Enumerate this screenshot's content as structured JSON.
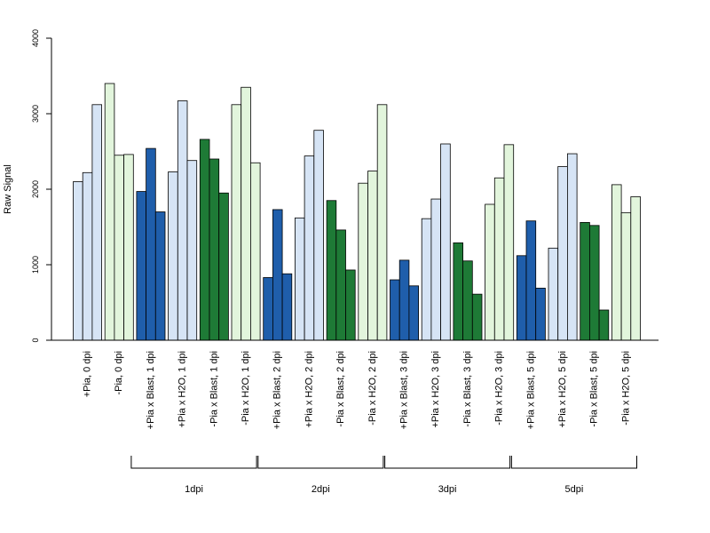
{
  "chart_data": {
    "type": "bar",
    "ylabel": "Raw Signal",
    "xlabel": "",
    "ylim": [
      0,
      4000
    ],
    "yticks": [
      "0",
      "1000",
      "2000",
      "3000",
      "4000"
    ],
    "grid": false,
    "categories": [
      "+Pia, 0 dpi",
      "-Pia, 0 dpi",
      "+Pia x Blast, 1 dpi",
      "+Pia x H2O, 1 dpi",
      "-Pia x Blast, 1 dpi",
      "-Pia x H2O, 1 dpi",
      "+Pia x Blast, 2 dpi",
      "+Pia x H2O, 2 dpi",
      "-Pia x Blast, 2 dpi",
      "-Pia x H2O, 2 dpi",
      "+Pia x Blast, 3 dpi",
      "+Pia x H2O, 3 dpi",
      "-Pia x Blast, 3 dpi",
      "-Pia x H2O, 3 dpi",
      "+Pia x Blast, 5 dpi",
      "+Pia x H2O, 5 dpi",
      "-Pia x Blast, 5 dpi",
      "-Pia x H2O, 5 dpi"
    ],
    "values": [
      [
        2100,
        2220,
        3120
      ],
      [
        3400,
        2450,
        2460
      ],
      [
        1970,
        2540,
        1700
      ],
      [
        2230,
        3170,
        2380
      ],
      [
        2660,
        2400,
        1950
      ],
      [
        3120,
        3350,
        2350
      ],
      [
        830,
        1730,
        880
      ],
      [
        1620,
        2440,
        2780
      ],
      [
        1850,
        1460,
        930
      ],
      [
        2080,
        2240,
        3120
      ],
      [
        800,
        1060,
        720
      ],
      [
        1610,
        1870,
        2600
      ],
      [
        1290,
        1050,
        610
      ],
      [
        1800,
        2150,
        2590
      ],
      [
        1120,
        1580,
        690
      ],
      [
        1220,
        2300,
        2470
      ],
      [
        1560,
        1520,
        400
      ],
      [
        2060,
        1690,
        1900
      ]
    ],
    "bar_colors": [
      "#d6e4f5",
      "#e2f5dc",
      "#1f5eab",
      "#d6e4f5",
      "#1e7a36",
      "#e2f5dc",
      "#1f5eab",
      "#d6e4f5",
      "#1e7a36",
      "#e2f5dc",
      "#1f5eab",
      "#d6e4f5",
      "#1e7a36",
      "#e2f5dc",
      "#1f5eab",
      "#d6e4f5",
      "#1e7a36",
      "#e2f5dc"
    ],
    "groups": [
      {
        "label": "1dpi",
        "from": 2,
        "to": 5
      },
      {
        "label": "2dpi",
        "from": 6,
        "to": 9
      },
      {
        "label": "3dpi",
        "from": 10,
        "to": 13
      },
      {
        "label": "5dpi",
        "from": 14,
        "to": 17
      }
    ]
  }
}
